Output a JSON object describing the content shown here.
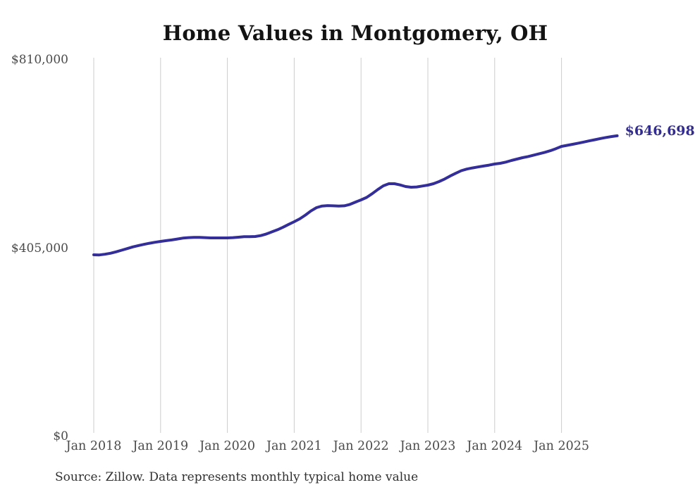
{
  "title": "Home Values in Montgomery, OH",
  "source_note": "Source: Zillow. Data represents monthly typical home value",
  "end_label": "$646,698",
  "colors": {
    "line": "#342e99",
    "grid": "#cccccc",
    "axis_text": "#4a4a4a",
    "title_text": "#131313",
    "end_label_text": "#332d8f",
    "background": "#ffffff"
  },
  "y_axis": {
    "ticks": [
      {
        "label": "$810,000",
        "value": 810000
      },
      {
        "label": "$405,000",
        "value": 405000
      },
      {
        "label": "$0",
        "value": 0
      }
    ]
  },
  "x_axis": {
    "tick_labels": [
      "Jan 2018",
      "Jan 2019",
      "Jan 2020",
      "Jan 2021",
      "Jan 2022",
      "Jan 2023",
      "Jan 2024",
      "Jan 2025"
    ]
  },
  "chart_data": {
    "type": "line",
    "title": "Home Values in Montgomery, OH",
    "series_name": "Monthly typical home value (Zillow)",
    "frequency": "monthly",
    "start_month": "2018-01",
    "end_month": "2025-11",
    "ylim": [
      0,
      810000
    ],
    "y_ticks": [
      0,
      405000,
      810000
    ],
    "x_tick_labels": [
      "Jan 2018",
      "Jan 2019",
      "Jan 2020",
      "Jan 2021",
      "Jan 2022",
      "Jan 2023",
      "Jan 2024",
      "Jan 2025"
    ],
    "grid": "vertical-only",
    "legend": "none",
    "latest_value": 646698,
    "latest_value_label": "$646,698",
    "values": [
      390600,
      390300,
      391800,
      394000,
      397000,
      400500,
      404000,
      407500,
      410500,
      413000,
      415500,
      417500,
      419400,
      421000,
      422500,
      424500,
      426500,
      427500,
      428000,
      428000,
      427500,
      427000,
      427000,
      427000,
      427000,
      427500,
      428500,
      429500,
      429500,
      430000,
      432000,
      435500,
      440000,
      444500,
      450000,
      456000,
      461800,
      468000,
      476000,
      485000,
      492000,
      495500,
      496500,
      496000,
      495500,
      496000,
      499000,
      504000,
      508700,
      514000,
      522000,
      531000,
      539000,
      543500,
      543500,
      541000,
      537500,
      536000,
      536500,
      538500,
      540500,
      543500,
      548000,
      553500,
      560000,
      566000,
      571500,
      575000,
      577500,
      579500,
      581500,
      583500,
      585900,
      587500,
      590000,
      593500,
      596500,
      599500,
      602000,
      605000,
      608000,
      611000,
      614500,
      619000,
      623800,
      626000,
      628300,
      630700,
      633200,
      635700,
      638200,
      640700,
      643000,
      645000,
      646698
    ]
  }
}
